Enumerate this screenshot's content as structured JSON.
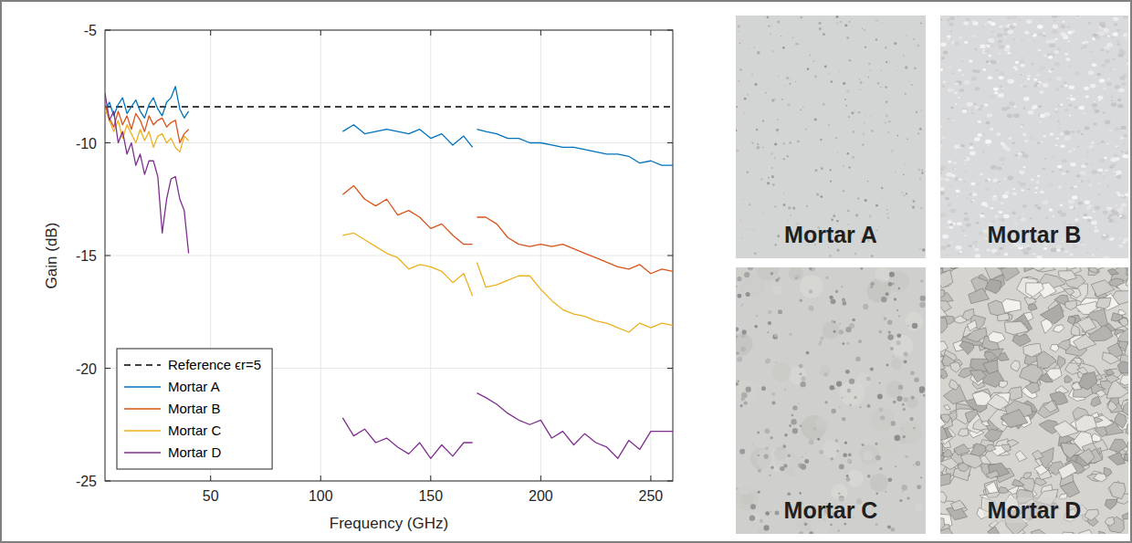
{
  "chart_data": {
    "type": "line",
    "x_label": "Frequency (GHz)",
    "y_label": "Gain (dB)",
    "xlim": [
      2,
      260
    ],
    "ylim": [
      -25,
      -5
    ],
    "xticks": [
      50,
      100,
      150,
      200,
      250
    ],
    "yticks": [
      -25,
      -20,
      -15,
      -10,
      -5
    ],
    "grid": true,
    "legend": "lower left",
    "x": [
      2,
      4,
      6,
      8,
      10,
      12,
      14,
      16,
      18,
      20,
      22,
      24,
      26,
      28,
      30,
      32,
      34,
      36,
      38,
      40,
      75,
      110,
      115,
      120,
      125,
      130,
      135,
      140,
      145,
      150,
      155,
      160,
      165,
      169,
      170,
      171,
      175,
      180,
      185,
      190,
      195,
      200,
      205,
      210,
      215,
      220,
      225,
      230,
      235,
      240,
      245,
      250,
      255,
      260
    ],
    "series": [
      {
        "name": "Reference ϵr=5",
        "color": "#000000",
        "line_style": "dashed",
        "x": [
          2,
          260
        ],
        "values": [
          -8.4,
          -8.4
        ]
      },
      {
        "name": "Mortar A",
        "color": "#0072bd",
        "line_style": "solid",
        "values": [
          -8.6,
          -8.2,
          -8.8,
          -8.3,
          -8.0,
          -8.7,
          -8.4,
          -8.1,
          -8.6,
          -8.9,
          -8.3,
          -8.0,
          -8.5,
          -8.8,
          -8.2,
          -8.0,
          -7.5,
          -8.5,
          -8.9,
          -8.6,
          null,
          -9.5,
          -9.2,
          -9.6,
          -9.5,
          -9.4,
          -9.5,
          -9.6,
          -9.4,
          -9.8,
          -9.6,
          -10.1,
          -9.7,
          -10.2,
          null,
          -9.4,
          -9.5,
          -9.6,
          -9.8,
          -9.8,
          -10.0,
          -10.0,
          -10.1,
          -10.2,
          -10.2,
          -10.3,
          -10.4,
          -10.5,
          -10.5,
          -10.6,
          -10.9,
          -10.8,
          -11.0,
          -11.0
        ]
      },
      {
        "name": "Mortar B",
        "color": "#d95319",
        "line_style": "solid",
        "values": [
          -8.3,
          -8.9,
          -9.3,
          -8.6,
          -9.2,
          -8.8,
          -9.4,
          -8.7,
          -9.0,
          -9.5,
          -8.8,
          -9.2,
          -9.0,
          -8.9,
          -9.3,
          -9.1,
          -9.0,
          -10.0,
          -9.6,
          -9.4,
          null,
          -12.3,
          -11.9,
          -12.5,
          -12.8,
          -12.5,
          -13.2,
          -13.0,
          -13.3,
          -13.8,
          -13.6,
          -14.1,
          -14.5,
          -14.5,
          null,
          -13.3,
          -13.3,
          -13.6,
          -14.2,
          -14.5,
          -14.6,
          -14.5,
          -14.6,
          -14.5,
          -14.7,
          -14.9,
          -15.1,
          -15.3,
          -15.5,
          -15.6,
          -15.4,
          -15.8,
          -15.6,
          -15.7
        ]
      },
      {
        "name": "Mortar C",
        "color": "#edb120",
        "line_style": "solid",
        "values": [
          -8.5,
          -9.0,
          -9.5,
          -9.0,
          -9.8,
          -9.2,
          -9.6,
          -10.0,
          -9.4,
          -9.9,
          -9.5,
          -10.2,
          -9.7,
          -9.6,
          -10.0,
          -9.8,
          -10.2,
          -10.4,
          -9.7,
          -9.9,
          null,
          -14.1,
          -14.0,
          -14.3,
          -14.6,
          -14.9,
          -15.1,
          -15.6,
          -15.4,
          -15.5,
          -15.7,
          -16.2,
          -15.8,
          -16.8,
          null,
          -15.3,
          -16.4,
          -16.3,
          -16.1,
          -15.9,
          -15.9,
          -16.5,
          -17.0,
          -17.4,
          -17.6,
          -17.7,
          -17.9,
          -18.0,
          -18.2,
          -18.4,
          -18.0,
          -18.2,
          -18.0,
          -18.1
        ]
      },
      {
        "name": "Mortar D",
        "color": "#7e2f8e",
        "line_style": "solid",
        "values": [
          -7.8,
          -9.0,
          -8.6,
          -10.0,
          -9.5,
          -10.5,
          -10.0,
          -11.0,
          -10.5,
          -11.4,
          -10.8,
          -10.8,
          -11.5,
          -14.0,
          -12.5,
          -11.6,
          -11.5,
          -12.5,
          -13.0,
          -14.9,
          null,
          -22.2,
          -23.0,
          -22.7,
          -23.3,
          -23.1,
          -23.5,
          -23.8,
          -23.3,
          -24.0,
          -23.4,
          -23.9,
          -23.3,
          -23.3,
          null,
          -21.1,
          -21.3,
          -21.6,
          -22.0,
          -22.3,
          -22.5,
          -22.3,
          -23.1,
          -22.8,
          -23.4,
          -22.9,
          -23.3,
          -23.5,
          -24.0,
          -23.2,
          -23.6,
          -22.8,
          -22.8,
          -22.8
        ]
      }
    ]
  },
  "photos": [
    {
      "label": "Mortar A"
    },
    {
      "label": "Mortar B"
    },
    {
      "label": "Mortar C"
    },
    {
      "label": "Mortar D"
    }
  ]
}
